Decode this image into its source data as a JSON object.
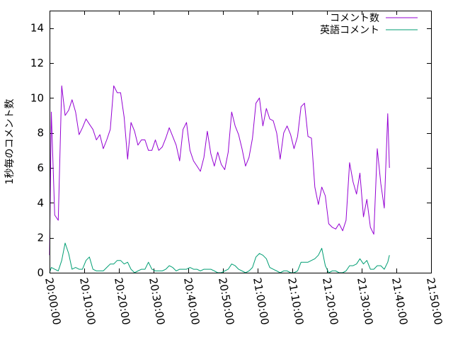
{
  "chart_data": {
    "type": "line",
    "title": "",
    "xlabel": "",
    "ylabel": "1秒毎のコメント数",
    "xlim": [
      "20:00:00",
      "21:50:00"
    ],
    "ylim": [
      0,
      15
    ],
    "x_tick_labels": [
      "20:00:00",
      "20:10:00",
      "20:20:00",
      "20:30:00",
      "20:40:00",
      "20:50:00",
      "21:00:00",
      "21:10:00",
      "21:20:00",
      "21:30:00",
      "21:40:00",
      "21:50:00"
    ],
    "y_tick_labels": [
      "0",
      "2",
      "4",
      "6",
      "8",
      "10",
      "12",
      "14"
    ],
    "legend_position": "top-right",
    "grid": false,
    "series": [
      {
        "name": "コメント数",
        "color": "#9400d3",
        "points": [
          [
            "20:00:00",
            1.0
          ],
          [
            "20:00:30",
            9.2
          ],
          [
            "20:01:30",
            3.3
          ],
          [
            "20:02:30",
            3.0
          ],
          [
            "20:03:30",
            10.7
          ],
          [
            "20:04:30",
            9.0
          ],
          [
            "20:05:30",
            9.3
          ],
          [
            "20:06:30",
            9.9
          ],
          [
            "20:07:30",
            9.2
          ],
          [
            "20:08:30",
            7.9
          ],
          [
            "20:09:30",
            8.3
          ],
          [
            "20:10:30",
            8.8
          ],
          [
            "20:11:30",
            8.5
          ],
          [
            "20:12:30",
            8.2
          ],
          [
            "20:13:30",
            7.6
          ],
          [
            "20:14:30",
            7.9
          ],
          [
            "20:15:30",
            7.1
          ],
          [
            "20:16:30",
            7.6
          ],
          [
            "20:17:30",
            8.2
          ],
          [
            "20:18:30",
            10.7
          ],
          [
            "20:19:30",
            10.3
          ],
          [
            "20:20:30",
            10.3
          ],
          [
            "20:21:30",
            8.9
          ],
          [
            "20:22:30",
            6.5
          ],
          [
            "20:23:30",
            8.6
          ],
          [
            "20:24:30",
            8.1
          ],
          [
            "20:25:30",
            7.3
          ],
          [
            "20:26:30",
            7.6
          ],
          [
            "20:27:30",
            7.6
          ],
          [
            "20:28:30",
            7.0
          ],
          [
            "20:29:30",
            7.0
          ],
          [
            "20:30:30",
            7.6
          ],
          [
            "20:31:30",
            7.0
          ],
          [
            "20:32:30",
            7.2
          ],
          [
            "20:33:30",
            7.7
          ],
          [
            "20:34:30",
            8.3
          ],
          [
            "20:35:30",
            7.8
          ],
          [
            "20:36:30",
            7.3
          ],
          [
            "20:37:30",
            6.4
          ],
          [
            "20:38:30",
            8.2
          ],
          [
            "20:39:30",
            8.6
          ],
          [
            "20:40:30",
            7.0
          ],
          [
            "20:41:30",
            6.4
          ],
          [
            "20:42:30",
            6.1
          ],
          [
            "20:43:30",
            5.8
          ],
          [
            "20:44:30",
            6.6
          ],
          [
            "20:45:30",
            8.1
          ],
          [
            "20:46:30",
            6.8
          ],
          [
            "20:47:30",
            6.1
          ],
          [
            "20:48:30",
            6.9
          ],
          [
            "20:49:30",
            6.2
          ],
          [
            "20:50:30",
            5.9
          ],
          [
            "20:51:30",
            6.9
          ],
          [
            "20:52:30",
            9.2
          ],
          [
            "20:53:30",
            8.4
          ],
          [
            "20:54:30",
            7.9
          ],
          [
            "20:55:30",
            7.1
          ],
          [
            "20:56:30",
            6.1
          ],
          [
            "20:57:30",
            6.6
          ],
          [
            "20:58:30",
            7.7
          ],
          [
            "20:59:30",
            9.7
          ],
          [
            "21:00:30",
            10.0
          ],
          [
            "21:01:30",
            8.4
          ],
          [
            "21:02:30",
            9.4
          ],
          [
            "21:03:30",
            8.8
          ],
          [
            "21:04:30",
            8.7
          ],
          [
            "21:05:30",
            8.0
          ],
          [
            "21:06:30",
            6.5
          ],
          [
            "21:07:30",
            8.0
          ],
          [
            "21:08:30",
            8.4
          ],
          [
            "21:09:30",
            7.9
          ],
          [
            "21:10:30",
            7.1
          ],
          [
            "21:11:30",
            7.8
          ],
          [
            "21:12:30",
            9.5
          ],
          [
            "21:13:30",
            9.7
          ],
          [
            "21:14:30",
            7.8
          ],
          [
            "21:15:30",
            7.7
          ],
          [
            "21:16:30",
            4.9
          ],
          [
            "21:17:30",
            3.9
          ],
          [
            "21:18:30",
            4.9
          ],
          [
            "21:19:30",
            4.4
          ],
          [
            "21:20:30",
            2.8
          ],
          [
            "21:21:30",
            2.6
          ],
          [
            "21:22:30",
            2.5
          ],
          [
            "21:23:30",
            2.8
          ],
          [
            "21:24:30",
            2.4
          ],
          [
            "21:25:30",
            3.0
          ],
          [
            "21:26:30",
            6.3
          ],
          [
            "21:27:30",
            5.2
          ],
          [
            "21:28:30",
            4.5
          ],
          [
            "21:29:30",
            5.7
          ],
          [
            "21:30:30",
            3.2
          ],
          [
            "21:31:30",
            4.2
          ],
          [
            "21:32:30",
            2.6
          ],
          [
            "21:33:30",
            2.2
          ],
          [
            "21:34:30",
            7.1
          ],
          [
            "21:35:30",
            5.1
          ],
          [
            "21:36:30",
            3.7
          ],
          [
            "21:37:30",
            9.1
          ],
          [
            "21:38:00",
            6.0
          ]
        ]
      },
      {
        "name": "英語コメント",
        "color": "#009e73",
        "points": [
          [
            "20:00:00",
            0.0
          ],
          [
            "20:00:30",
            0.3
          ],
          [
            "20:01:30",
            0.2
          ],
          [
            "20:02:30",
            0.1
          ],
          [
            "20:03:30",
            0.7
          ],
          [
            "20:04:30",
            1.7
          ],
          [
            "20:05:30",
            1.1
          ],
          [
            "20:06:30",
            0.2
          ],
          [
            "20:07:30",
            0.3
          ],
          [
            "20:08:30",
            0.2
          ],
          [
            "20:09:30",
            0.2
          ],
          [
            "20:10:30",
            0.7
          ],
          [
            "20:11:30",
            0.9
          ],
          [
            "20:12:30",
            0.2
          ],
          [
            "20:13:30",
            0.1
          ],
          [
            "20:14:30",
            0.1
          ],
          [
            "20:15:30",
            0.1
          ],
          [
            "20:16:30",
            0.3
          ],
          [
            "20:17:30",
            0.5
          ],
          [
            "20:18:30",
            0.5
          ],
          [
            "20:19:30",
            0.7
          ],
          [
            "20:20:30",
            0.7
          ],
          [
            "20:21:30",
            0.5
          ],
          [
            "20:22:30",
            0.6
          ],
          [
            "20:23:30",
            0.2
          ],
          [
            "20:24:30",
            0.0
          ],
          [
            "20:25:30",
            0.1
          ],
          [
            "20:26:30",
            0.2
          ],
          [
            "20:27:30",
            0.2
          ],
          [
            "20:28:30",
            0.6
          ],
          [
            "20:29:30",
            0.2
          ],
          [
            "20:30:30",
            0.1
          ],
          [
            "20:31:30",
            0.1
          ],
          [
            "20:32:30",
            0.1
          ],
          [
            "20:33:30",
            0.2
          ],
          [
            "20:34:30",
            0.4
          ],
          [
            "20:35:30",
            0.3
          ],
          [
            "20:36:30",
            0.1
          ],
          [
            "20:37:30",
            0.2
          ],
          [
            "20:38:30",
            0.2
          ],
          [
            "20:39:30",
            0.2
          ],
          [
            "20:40:30",
            0.3
          ],
          [
            "20:41:30",
            0.2
          ],
          [
            "20:42:30",
            0.2
          ],
          [
            "20:43:30",
            0.1
          ],
          [
            "20:44:30",
            0.2
          ],
          [
            "20:45:30",
            0.2
          ],
          [
            "20:46:30",
            0.2
          ],
          [
            "20:47:30",
            0.1
          ],
          [
            "20:48:30",
            0.0
          ],
          [
            "20:49:30",
            0.0
          ],
          [
            "20:50:30",
            0.1
          ],
          [
            "20:51:30",
            0.2
          ],
          [
            "20:52:30",
            0.5
          ],
          [
            "20:53:30",
            0.4
          ],
          [
            "20:54:30",
            0.2
          ],
          [
            "20:55:30",
            0.1
          ],
          [
            "20:56:30",
            0.0
          ],
          [
            "20:57:30",
            0.1
          ],
          [
            "20:58:30",
            0.3
          ],
          [
            "20:59:30",
            0.9
          ],
          [
            "21:00:30",
            1.1
          ],
          [
            "21:01:30",
            1.0
          ],
          [
            "21:02:30",
            0.8
          ],
          [
            "21:03:30",
            0.3
          ],
          [
            "21:04:30",
            0.2
          ],
          [
            "21:05:30",
            0.1
          ],
          [
            "21:06:30",
            0.0
          ],
          [
            "21:07:30",
            0.1
          ],
          [
            "21:08:30",
            0.1
          ],
          [
            "21:09:30",
            0.0
          ],
          [
            "21:10:30",
            0.0
          ],
          [
            "21:11:30",
            0.1
          ],
          [
            "21:12:30",
            0.6
          ],
          [
            "21:13:30",
            0.6
          ],
          [
            "21:14:30",
            0.6
          ],
          [
            "21:15:30",
            0.7
          ],
          [
            "21:16:30",
            0.8
          ],
          [
            "21:17:30",
            1.0
          ],
          [
            "21:18:30",
            1.4
          ],
          [
            "21:19:30",
            0.4
          ],
          [
            "21:20:30",
            0.0
          ],
          [
            "21:21:30",
            0.1
          ],
          [
            "21:22:30",
            0.1
          ],
          [
            "21:23:30",
            0.0
          ],
          [
            "21:24:30",
            0.0
          ],
          [
            "21:25:30",
            0.1
          ],
          [
            "21:26:30",
            0.4
          ],
          [
            "21:27:30",
            0.4
          ],
          [
            "21:28:30",
            0.5
          ],
          [
            "21:29:30",
            0.8
          ],
          [
            "21:30:30",
            0.5
          ],
          [
            "21:31:30",
            0.7
          ],
          [
            "21:32:30",
            0.2
          ],
          [
            "21:33:30",
            0.2
          ],
          [
            "21:34:30",
            0.4
          ],
          [
            "21:35:30",
            0.4
          ],
          [
            "21:36:30",
            0.2
          ],
          [
            "21:37:30",
            0.6
          ],
          [
            "21:38:00",
            1.0
          ]
        ]
      }
    ]
  }
}
